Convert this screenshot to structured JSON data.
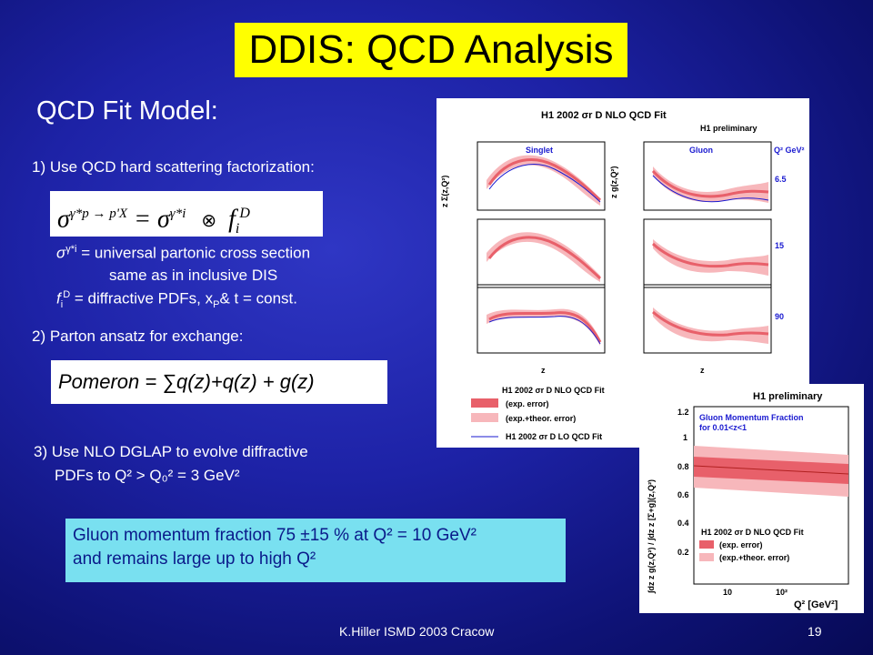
{
  "slide": {
    "title": "DDIS: QCD Analysis",
    "subtitle": "QCD Fit Model:",
    "point1": "1) Use QCD hard scattering factorization:",
    "formula_sigma": "σ",
    "formula_sup1": "γ*p → p'X",
    "formula_eq": " = σ",
    "formula_sup2": "γ*i",
    "formula_otimes": "⊗",
    "formula_f": "f",
    "formula_fsup": "D",
    "formula_fsub": "i",
    "def1": "σ",
    "def1_sup": "γ*i",
    "def1_text": " = universal partonic cross section",
    "def1_line2": "same as in inclusive DIS",
    "def2_f": "f",
    "def2_sub": "i",
    "def2_sup": "D",
    "def2_text": " = diffractive PDFs, x",
    "def2_sub2": "P",
    "def2_tail": "& t = const.",
    "point2": "2) Parton ansatz for exchange:",
    "pomeron": "Pomeron = ∑q(z)+q(z)  + g(z)",
    "point3_line1": "3) Use NLO DGLAP  to evolve diffractive",
    "point3_line2": "PDFs  to  Q² > Q₀² = 3 GeV²",
    "gluon_line1": "Gluon momentum fraction 75 ±15 % at Q² = 10 GeV²",
    "gluon_line2": "and remains large up to high Q²",
    "footer_left": "K.Hiller ISMD 2003   Cracow",
    "footer_page": "19"
  },
  "plot1": {
    "title": "H1 2002 σr D NLO QCD Fit",
    "prelim": "H1 preliminary",
    "col1": "Singlet",
    "col2": "Gluon",
    "ylabel1": "z Σ(z,Q²)",
    "ylabel2": "z g(z,Q²)",
    "q2_header": "Q² GeV²",
    "q2_values": [
      "6.5",
      "15",
      "90"
    ],
    "xlabel": "z",
    "legend": [
      "H1 2002 σr D NLO QCD Fit",
      "(exp. error)",
      "(exp.+theor. error)",
      "H1 2002 σr D LO QCD Fit"
    ],
    "colors": {
      "band_inner": "#e8606a",
      "band_outer": "#f7b7bb",
      "lo_line": "#1a1ad0"
    }
  },
  "plot2": {
    "title": "H1 preliminary",
    "inner_title": "Gluon Momentum Fraction",
    "inner_sub": "for 0.01<z<1",
    "ylabel": "∫dz z g(z,Q²) / ∫dz z [Σ+g](z,Q²)",
    "xlabel": "Q² [GeV²]",
    "legend": [
      "H1 2002 σr D NLO QCD Fit",
      "(exp. error)",
      "(exp.+theor. error)"
    ],
    "yticks": [
      "0.2",
      "0.4",
      "0.6",
      "0.8",
      "1",
      "1.2"
    ],
    "xticks": [
      "10",
      "10²"
    ],
    "chart_data": {
      "type": "area",
      "x": [
        4,
        100
      ],
      "y_central": [
        0.78,
        0.73
      ],
      "ylim": [
        0,
        1.3
      ]
    }
  }
}
